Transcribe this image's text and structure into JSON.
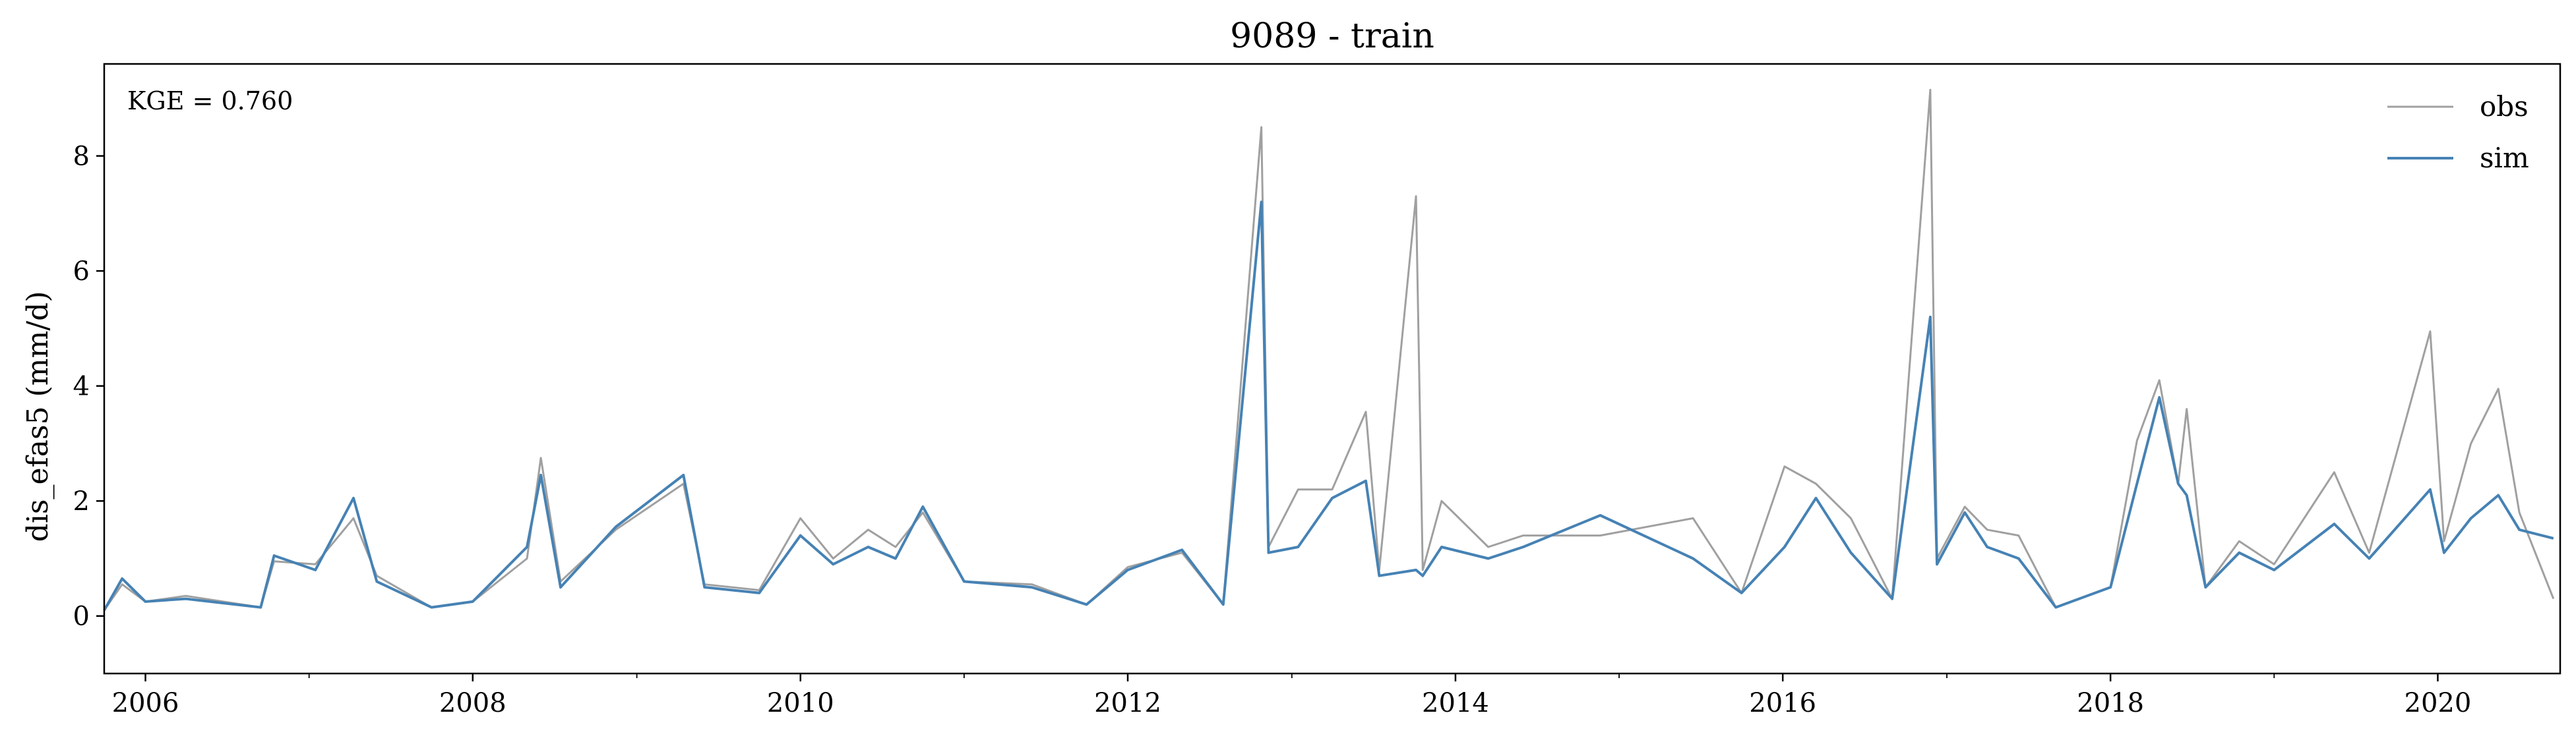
{
  "chart_data": {
    "type": "line",
    "title": "9089 - train",
    "xlabel": "",
    "ylabel": "dis_efas5 (mm/d)",
    "xlim": [
      "2005-10-01",
      "2020-09-30"
    ],
    "ylim": [
      -1,
      9.6
    ],
    "yticks": [
      "0",
      "2",
      "4",
      "6",
      "8"
    ],
    "xticks": [
      "2006",
      "2008",
      "2010",
      "2012",
      "2014",
      "2016",
      "2018",
      "2020"
    ],
    "annotation": "KGE = 0.760",
    "legend_position": "top-right",
    "grid": false,
    "colors": {
      "obs": "#a0a0a0",
      "sim": "#4682b4"
    },
    "series": [
      {
        "name": "obs",
        "points": [
          [
            "2005-10-01",
            0.1
          ],
          [
            "2005-11-10",
            0.55
          ],
          [
            "2006-01-01",
            0.25
          ],
          [
            "2006-04-01",
            0.35
          ],
          [
            "2006-09-15",
            0.15
          ],
          [
            "2006-10-15",
            0.95
          ],
          [
            "2007-01-15",
            0.9
          ],
          [
            "2007-04-10",
            1.7
          ],
          [
            "2007-06-01",
            0.7
          ],
          [
            "2007-10-01",
            0.15
          ],
          [
            "2008-01-01",
            0.25
          ],
          [
            "2008-05-01",
            1.0
          ],
          [
            "2008-06-01",
            2.75
          ],
          [
            "2008-07-15",
            0.6
          ],
          [
            "2008-11-15",
            1.5
          ],
          [
            "2009-04-15",
            2.3
          ],
          [
            "2009-06-01",
            0.55
          ],
          [
            "2009-10-01",
            0.45
          ],
          [
            "2010-01-01",
            1.7
          ],
          [
            "2010-03-15",
            1.0
          ],
          [
            "2010-06-01",
            1.5
          ],
          [
            "2010-08-01",
            1.2
          ],
          [
            "2010-10-01",
            1.8
          ],
          [
            "2011-01-01",
            0.6
          ],
          [
            "2011-06-01",
            0.55
          ],
          [
            "2011-10-01",
            0.2
          ],
          [
            "2012-01-01",
            0.85
          ],
          [
            "2012-05-01",
            1.1
          ],
          [
            "2012-08-01",
            0.2
          ],
          [
            "2012-10-25",
            8.5
          ],
          [
            "2012-11-10",
            1.2
          ],
          [
            "2013-01-15",
            2.2
          ],
          [
            "2013-04-01",
            2.2
          ],
          [
            "2013-06-15",
            3.55
          ],
          [
            "2013-07-15",
            0.8
          ],
          [
            "2013-10-05",
            7.3
          ],
          [
            "2013-10-20",
            0.8
          ],
          [
            "2013-12-01",
            2.0
          ],
          [
            "2014-03-15",
            1.2
          ],
          [
            "2014-06-01",
            1.4
          ],
          [
            "2014-11-20",
            1.4
          ],
          [
            "2015-06-15",
            1.7
          ],
          [
            "2015-10-01",
            0.4
          ],
          [
            "2016-01-05",
            2.6
          ],
          [
            "2016-03-15",
            2.3
          ],
          [
            "2016-06-01",
            1.7
          ],
          [
            "2016-09-01",
            0.3
          ],
          [
            "2016-11-25",
            9.15
          ],
          [
            "2016-12-10",
            1.0
          ],
          [
            "2017-02-10",
            1.9
          ],
          [
            "2017-04-01",
            1.5
          ],
          [
            "2017-06-10",
            1.4
          ],
          [
            "2017-09-01",
            0.15
          ],
          [
            "2018-01-01",
            0.5
          ],
          [
            "2018-03-01",
            3.05
          ],
          [
            "2018-04-20",
            4.1
          ],
          [
            "2018-06-01",
            2.3
          ],
          [
            "2018-06-20",
            3.6
          ],
          [
            "2018-08-01",
            0.5
          ],
          [
            "2018-10-15",
            1.3
          ],
          [
            "2019-01-01",
            0.9
          ],
          [
            "2019-05-15",
            2.5
          ],
          [
            "2019-08-01",
            1.1
          ],
          [
            "2019-12-15",
            4.95
          ],
          [
            "2020-01-15",
            1.3
          ],
          [
            "2020-03-15",
            3.0
          ],
          [
            "2020-05-15",
            3.95
          ],
          [
            "2020-07-01",
            1.8
          ],
          [
            "2020-09-15",
            0.3
          ]
        ]
      },
      {
        "name": "sim",
        "points": [
          [
            "2005-10-01",
            0.1
          ],
          [
            "2005-11-10",
            0.65
          ],
          [
            "2006-01-01",
            0.25
          ],
          [
            "2006-04-01",
            0.3
          ],
          [
            "2006-09-15",
            0.15
          ],
          [
            "2006-10-15",
            1.05
          ],
          [
            "2007-01-15",
            0.8
          ],
          [
            "2007-04-10",
            2.05
          ],
          [
            "2007-06-01",
            0.6
          ],
          [
            "2007-10-01",
            0.15
          ],
          [
            "2008-01-01",
            0.25
          ],
          [
            "2008-05-01",
            1.2
          ],
          [
            "2008-06-01",
            2.45
          ],
          [
            "2008-07-15",
            0.5
          ],
          [
            "2008-11-15",
            1.55
          ],
          [
            "2009-04-15",
            2.45
          ],
          [
            "2009-06-01",
            0.5
          ],
          [
            "2009-10-01",
            0.4
          ],
          [
            "2010-01-01",
            1.4
          ],
          [
            "2010-03-15",
            0.9
          ],
          [
            "2010-06-01",
            1.2
          ],
          [
            "2010-08-01",
            1.0
          ],
          [
            "2010-10-01",
            1.9
          ],
          [
            "2011-01-01",
            0.6
          ],
          [
            "2011-06-01",
            0.5
          ],
          [
            "2011-10-01",
            0.2
          ],
          [
            "2012-01-01",
            0.8
          ],
          [
            "2012-05-01",
            1.15
          ],
          [
            "2012-08-01",
            0.2
          ],
          [
            "2012-10-25",
            7.2
          ],
          [
            "2012-11-10",
            1.1
          ],
          [
            "2013-01-15",
            1.2
          ],
          [
            "2013-04-01",
            2.05
          ],
          [
            "2013-06-15",
            2.35
          ],
          [
            "2013-07-15",
            0.7
          ],
          [
            "2013-10-05",
            0.8
          ],
          [
            "2013-10-20",
            0.7
          ],
          [
            "2013-12-01",
            1.2
          ],
          [
            "2014-03-15",
            1.0
          ],
          [
            "2014-06-01",
            1.2
          ],
          [
            "2014-11-20",
            1.75
          ],
          [
            "2015-06-15",
            1.0
          ],
          [
            "2015-10-01",
            0.4
          ],
          [
            "2016-01-05",
            1.2
          ],
          [
            "2016-03-15",
            2.05
          ],
          [
            "2016-06-01",
            1.1
          ],
          [
            "2016-09-01",
            0.3
          ],
          [
            "2016-11-25",
            5.2
          ],
          [
            "2016-12-10",
            0.9
          ],
          [
            "2017-02-10",
            1.8
          ],
          [
            "2017-04-01",
            1.2
          ],
          [
            "2017-06-10",
            1.0
          ],
          [
            "2017-09-01",
            0.15
          ],
          [
            "2018-01-01",
            0.5
          ],
          [
            "2018-03-01",
            2.3
          ],
          [
            "2018-04-20",
            3.8
          ],
          [
            "2018-06-01",
            2.3
          ],
          [
            "2018-06-20",
            2.1
          ],
          [
            "2018-08-01",
            0.5
          ],
          [
            "2018-10-15",
            1.1
          ],
          [
            "2019-01-01",
            0.8
          ],
          [
            "2019-05-15",
            1.6
          ],
          [
            "2019-08-01",
            1.0
          ],
          [
            "2019-12-15",
            2.2
          ],
          [
            "2020-01-15",
            1.1
          ],
          [
            "2020-03-15",
            1.7
          ],
          [
            "2020-05-15",
            2.1
          ],
          [
            "2020-07-01",
            1.5
          ],
          [
            "2020-09-15",
            1.35
          ]
        ]
      }
    ]
  }
}
